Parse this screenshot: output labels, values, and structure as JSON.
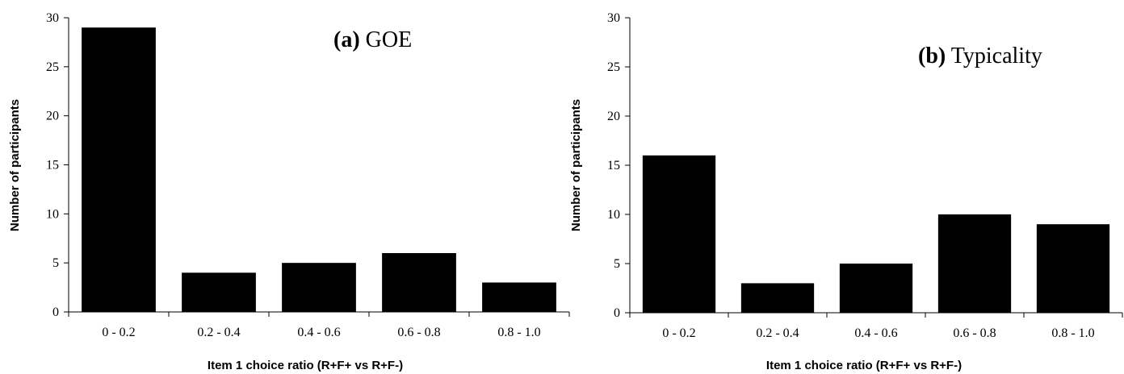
{
  "chart_data": [
    {
      "type": "bar",
      "title_bold": "(a)",
      "title_rest": " GOE",
      "xlabel": "Item 1 choice ratio  (R+F+ vs R+F-)",
      "ylabel": "Number of participants",
      "categories": [
        "0 - 0.2",
        "0.2 - 0.4",
        "0.4 - 0.6",
        "0.6 - 0.8",
        "0.8 - 1.0"
      ],
      "values": [
        29,
        4,
        5,
        6,
        3
      ],
      "ylim": [
        0,
        30
      ],
      "yticks": [
        0,
        5,
        10,
        15,
        20,
        25,
        30
      ],
      "bar_color": "#000000",
      "grid": false,
      "legend": "none"
    },
    {
      "type": "bar",
      "title_bold": "(b)",
      "title_rest": " Typicality",
      "xlabel": "Item 1 choice ratio  (R+F+ vs R+F-)",
      "ylabel": "Number of participants",
      "categories": [
        "0 - 0.2",
        "0.2 - 0.4",
        "0.4 - 0.6",
        "0.6 - 0.8",
        "0.8 - 1.0"
      ],
      "values": [
        16,
        3,
        5,
        10,
        9
      ],
      "ylim": [
        0,
        30
      ],
      "yticks": [
        0,
        5,
        10,
        15,
        20,
        25,
        30
      ],
      "bar_color": "#000000",
      "grid": false,
      "legend": "none"
    }
  ]
}
